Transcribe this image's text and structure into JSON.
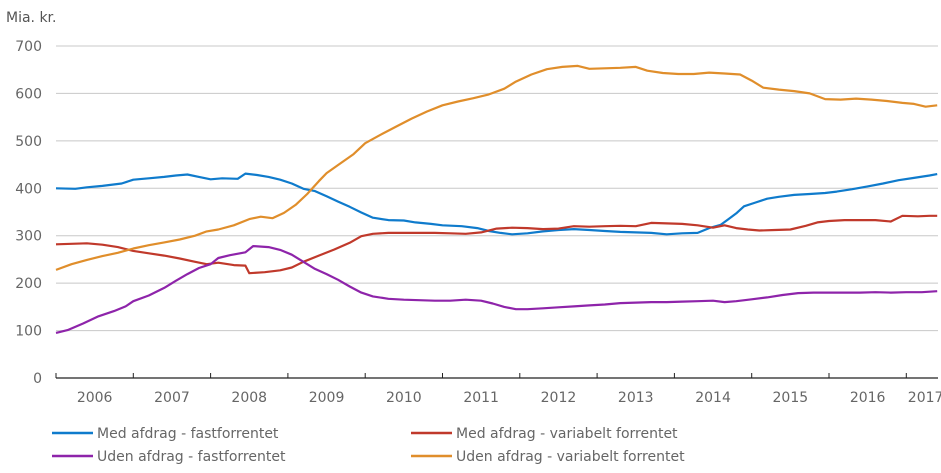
{
  "chart_data": {
    "type": "line",
    "title": "",
    "ylabel": "Mia. kr.",
    "xlabel": "",
    "ylim": [
      0,
      700
    ],
    "xlim": [
      2006.0,
      2017.4
    ],
    "yticks": [
      0,
      100,
      200,
      300,
      400,
      500,
      600,
      700
    ],
    "xtick_labels": [
      "2006",
      "2007",
      "2008",
      "2009",
      "2010",
      "2011",
      "2012",
      "2013",
      "2014",
      "2015",
      "2016",
      "2017"
    ],
    "grid": true,
    "legend_position": "bottom",
    "series": [
      {
        "name": "Med afdrag - fastforrentet",
        "color": "#0f7bcc",
        "points": [
          [
            2006.0,
            400
          ],
          [
            2006.25,
            399
          ],
          [
            2006.4,
            402
          ],
          [
            2006.6,
            405
          ],
          [
            2006.85,
            410
          ],
          [
            2007.0,
            418
          ],
          [
            2007.2,
            421
          ],
          [
            2007.4,
            424
          ],
          [
            2007.55,
            427
          ],
          [
            2007.7,
            429
          ],
          [
            2007.85,
            424
          ],
          [
            2008.0,
            419
          ],
          [
            2008.15,
            421
          ],
          [
            2008.35,
            420
          ],
          [
            2008.45,
            431
          ],
          [
            2008.6,
            428
          ],
          [
            2008.75,
            424
          ],
          [
            2008.9,
            418
          ],
          [
            2009.05,
            410
          ],
          [
            2009.2,
            399
          ],
          [
            2009.35,
            394
          ],
          [
            2009.5,
            383
          ],
          [
            2009.65,
            372
          ],
          [
            2009.8,
            361
          ],
          [
            2009.95,
            349
          ],
          [
            2010.1,
            338
          ],
          [
            2010.3,
            333
          ],
          [
            2010.5,
            332
          ],
          [
            2010.65,
            328
          ],
          [
            2010.85,
            325
          ],
          [
            2011.0,
            322
          ],
          [
            2011.25,
            320
          ],
          [
            2011.45,
            316
          ],
          [
            2011.6,
            310
          ],
          [
            2011.75,
            306
          ],
          [
            2011.9,
            303
          ],
          [
            2012.1,
            305
          ],
          [
            2012.3,
            309
          ],
          [
            2012.5,
            312
          ],
          [
            2012.7,
            314
          ],
          [
            2012.9,
            312
          ],
          [
            2013.1,
            310
          ],
          [
            2013.3,
            308
          ],
          [
            2013.5,
            307
          ],
          [
            2013.7,
            306
          ],
          [
            2013.9,
            303
          ],
          [
            2014.1,
            305
          ],
          [
            2014.3,
            306
          ],
          [
            2014.45,
            316
          ],
          [
            2014.6,
            323
          ],
          [
            2014.7,
            335
          ],
          [
            2014.8,
            347
          ],
          [
            2014.9,
            362
          ],
          [
            2015.05,
            370
          ],
          [
            2015.2,
            378
          ],
          [
            2015.35,
            382
          ],
          [
            2015.55,
            386
          ],
          [
            2015.75,
            388
          ],
          [
            2015.95,
            390
          ],
          [
            2016.1,
            393
          ],
          [
            2016.3,
            398
          ],
          [
            2016.5,
            404
          ],
          [
            2016.7,
            410
          ],
          [
            2016.9,
            417
          ],
          [
            2017.1,
            422
          ],
          [
            2017.3,
            427
          ],
          [
            2017.4,
            430
          ]
        ]
      },
      {
        "name": "Med afdrag - variabelt forrentet",
        "color": "#c0392b",
        "points": [
          [
            2006.0,
            282
          ],
          [
            2006.2,
            283
          ],
          [
            2006.4,
            284
          ],
          [
            2006.6,
            281
          ],
          [
            2006.8,
            276
          ],
          [
            2007.0,
            268
          ],
          [
            2007.2,
            263
          ],
          [
            2007.4,
            258
          ],
          [
            2007.6,
            252
          ],
          [
            2007.8,
            245
          ],
          [
            2007.95,
            240
          ],
          [
            2008.1,
            243
          ],
          [
            2008.3,
            238
          ],
          [
            2008.45,
            237
          ],
          [
            2008.5,
            221
          ],
          [
            2008.7,
            223
          ],
          [
            2008.9,
            227
          ],
          [
            2009.05,
            233
          ],
          [
            2009.2,
            245
          ],
          [
            2009.4,
            258
          ],
          [
            2009.6,
            271
          ],
          [
            2009.8,
            285
          ],
          [
            2009.95,
            299
          ],
          [
            2010.1,
            304
          ],
          [
            2010.3,
            306
          ],
          [
            2010.5,
            306
          ],
          [
            2010.7,
            306
          ],
          [
            2010.9,
            306
          ],
          [
            2011.1,
            305
          ],
          [
            2011.3,
            304
          ],
          [
            2011.5,
            307
          ],
          [
            2011.7,
            315
          ],
          [
            2011.9,
            317
          ],
          [
            2012.1,
            316
          ],
          [
            2012.3,
            314
          ],
          [
            2012.5,
            315
          ],
          [
            2012.7,
            320
          ],
          [
            2012.9,
            319
          ],
          [
            2013.1,
            320
          ],
          [
            2013.3,
            321
          ],
          [
            2013.5,
            320
          ],
          [
            2013.7,
            327
          ],
          [
            2013.9,
            326
          ],
          [
            2014.1,
            325
          ],
          [
            2014.3,
            322
          ],
          [
            2014.5,
            317
          ],
          [
            2014.65,
            322
          ],
          [
            2014.8,
            316
          ],
          [
            2014.95,
            313
          ],
          [
            2015.1,
            311
          ],
          [
            2015.3,
            312
          ],
          [
            2015.5,
            313
          ],
          [
            2015.7,
            321
          ],
          [
            2015.85,
            328
          ],
          [
            2016.0,
            331
          ],
          [
            2016.2,
            333
          ],
          [
            2016.4,
            333
          ],
          [
            2016.6,
            333
          ],
          [
            2016.8,
            330
          ],
          [
            2016.95,
            342
          ],
          [
            2017.15,
            341
          ],
          [
            2017.3,
            342
          ],
          [
            2017.4,
            342
          ]
        ]
      },
      {
        "name": "Uden afdrag - fastforrentet",
        "color": "#8e24aa",
        "points": [
          [
            2006.0,
            95
          ],
          [
            2006.15,
            101
          ],
          [
            2006.35,
            115
          ],
          [
            2006.55,
            130
          ],
          [
            2006.75,
            141
          ],
          [
            2006.9,
            151
          ],
          [
            2007.0,
            162
          ],
          [
            2007.2,
            174
          ],
          [
            2007.4,
            190
          ],
          [
            2007.55,
            205
          ],
          [
            2007.7,
            219
          ],
          [
            2007.85,
            232
          ],
          [
            2008.0,
            240
          ],
          [
            2008.1,
            253
          ],
          [
            2008.25,
            259
          ],
          [
            2008.45,
            265
          ],
          [
            2008.55,
            278
          ],
          [
            2008.75,
            276
          ],
          [
            2008.9,
            270
          ],
          [
            2009.05,
            260
          ],
          [
            2009.2,
            245
          ],
          [
            2009.35,
            230
          ],
          [
            2009.5,
            219
          ],
          [
            2009.65,
            207
          ],
          [
            2009.8,
            193
          ],
          [
            2009.95,
            180
          ],
          [
            2010.1,
            172
          ],
          [
            2010.3,
            167
          ],
          [
            2010.5,
            165
          ],
          [
            2010.7,
            164
          ],
          [
            2010.9,
            163
          ],
          [
            2011.1,
            163
          ],
          [
            2011.3,
            165
          ],
          [
            2011.5,
            163
          ],
          [
            2011.65,
            157
          ],
          [
            2011.8,
            150
          ],
          [
            2011.95,
            145
          ],
          [
            2012.1,
            145
          ],
          [
            2012.3,
            147
          ],
          [
            2012.5,
            149
          ],
          [
            2012.7,
            151
          ],
          [
            2012.9,
            153
          ],
          [
            2013.1,
            155
          ],
          [
            2013.3,
            158
          ],
          [
            2013.5,
            159
          ],
          [
            2013.7,
            160
          ],
          [
            2013.9,
            160
          ],
          [
            2014.1,
            161
          ],
          [
            2014.3,
            162
          ],
          [
            2014.5,
            163
          ],
          [
            2014.65,
            160
          ],
          [
            2014.8,
            162
          ],
          [
            2015.0,
            166
          ],
          [
            2015.2,
            170
          ],
          [
            2015.4,
            175
          ],
          [
            2015.6,
            179
          ],
          [
            2015.8,
            180
          ],
          [
            2016.0,
            180
          ],
          [
            2016.2,
            180
          ],
          [
            2016.4,
            180
          ],
          [
            2016.6,
            181
          ],
          [
            2016.8,
            180
          ],
          [
            2017.0,
            181
          ],
          [
            2017.2,
            181
          ],
          [
            2017.4,
            183
          ]
        ]
      },
      {
        "name": "Uden afdrag - variabelt forrentet",
        "color": "#e08e2b",
        "points": [
          [
            2006.0,
            228
          ],
          [
            2006.2,
            240
          ],
          [
            2006.4,
            249
          ],
          [
            2006.6,
            257
          ],
          [
            2006.8,
            264
          ],
          [
            2007.0,
            273
          ],
          [
            2007.2,
            280
          ],
          [
            2007.4,
            286
          ],
          [
            2007.6,
            292
          ],
          [
            2007.8,
            300
          ],
          [
            2007.95,
            309
          ],
          [
            2008.1,
            313
          ],
          [
            2008.3,
            322
          ],
          [
            2008.5,
            335
          ],
          [
            2008.65,
            340
          ],
          [
            2008.8,
            337
          ],
          [
            2008.95,
            348
          ],
          [
            2009.1,
            365
          ],
          [
            2009.25,
            388
          ],
          [
            2009.4,
            415
          ],
          [
            2009.5,
            432
          ],
          [
            2009.65,
            449
          ],
          [
            2009.85,
            472
          ],
          [
            2010.0,
            495
          ],
          [
            2010.2,
            513
          ],
          [
            2010.4,
            530
          ],
          [
            2010.6,
            547
          ],
          [
            2010.8,
            562
          ],
          [
            2011.0,
            575
          ],
          [
            2011.2,
            583
          ],
          [
            2011.4,
            590
          ],
          [
            2011.6,
            598
          ],
          [
            2011.8,
            610
          ],
          [
            2011.95,
            625
          ],
          [
            2012.15,
            640
          ],
          [
            2012.35,
            651
          ],
          [
            2012.55,
            656
          ],
          [
            2012.75,
            658
          ],
          [
            2012.9,
            652
          ],
          [
            2013.1,
            653
          ],
          [
            2013.3,
            654
          ],
          [
            2013.5,
            656
          ],
          [
            2013.65,
            648
          ],
          [
            2013.85,
            643
          ],
          [
            2014.05,
            641
          ],
          [
            2014.25,
            641
          ],
          [
            2014.45,
            644
          ],
          [
            2014.65,
            642
          ],
          [
            2014.85,
            640
          ],
          [
            2015.0,
            627
          ],
          [
            2015.15,
            612
          ],
          [
            2015.35,
            608
          ],
          [
            2015.55,
            605
          ],
          [
            2015.75,
            600
          ],
          [
            2015.95,
            588
          ],
          [
            2016.15,
            587
          ],
          [
            2016.35,
            589
          ],
          [
            2016.55,
            587
          ],
          [
            2016.75,
            584
          ],
          [
            2016.95,
            580
          ],
          [
            2017.1,
            578
          ],
          [
            2017.25,
            572
          ],
          [
            2017.4,
            575
          ]
        ]
      }
    ]
  }
}
